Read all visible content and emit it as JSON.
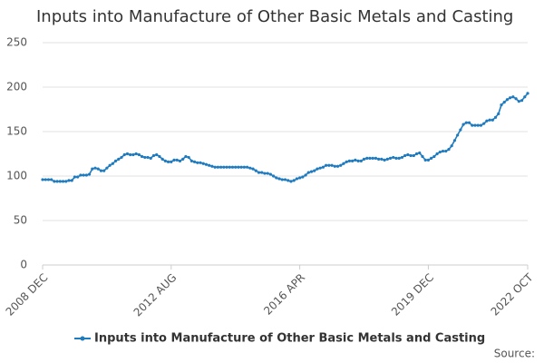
{
  "chart_data": {
    "type": "line",
    "title": "Inputs into Manufacture of Other Basic Metals and Casting",
    "source": "Source:",
    "categories": [
      "2008 DEC",
      null,
      null,
      null,
      null,
      null,
      null,
      null,
      null,
      null,
      null,
      null,
      null,
      null,
      null,
      null,
      null,
      null,
      null,
      null,
      null,
      null,
      null,
      null,
      null,
      null,
      null,
      null,
      null,
      null,
      null,
      null,
      null,
      null,
      null,
      null,
      null,
      null,
      null,
      null,
      null,
      null,
      null,
      null,
      "2012 AUG",
      null,
      null,
      null,
      null,
      null,
      null,
      null,
      null,
      null,
      null,
      null,
      null,
      null,
      null,
      null,
      null,
      null,
      null,
      null,
      null,
      null,
      null,
      null,
      null,
      null,
      null,
      null,
      null,
      null,
      null,
      null,
      null,
      null,
      null,
      null,
      null,
      null,
      null,
      null,
      null,
      null,
      null,
      null,
      "2016 APR",
      null,
      null,
      null,
      null,
      null,
      null,
      null,
      null,
      null,
      null,
      null,
      null,
      null,
      null,
      null,
      null,
      null,
      null,
      null,
      null,
      null,
      null,
      null,
      null,
      null,
      null,
      null,
      null,
      null,
      null,
      null,
      null,
      null,
      null,
      null,
      null,
      null,
      null,
      null,
      null,
      null,
      null,
      null,
      "2019 DEC",
      null,
      null,
      null,
      null,
      null,
      null,
      null,
      null,
      null,
      null,
      null,
      null,
      null,
      null,
      null,
      null,
      null,
      null,
      null,
      null,
      null,
      null,
      null,
      null,
      null,
      null,
      null,
      null,
      null,
      null,
      null,
      null,
      null,
      "2022 OCT"
    ],
    "series": [
      {
        "name": "Inputs into Manufacture of Other Basic Metals and Casting",
        "color": "#1f7bbf",
        "values": [
          96,
          96,
          96,
          96,
          94,
          94,
          94,
          94,
          94,
          95,
          95,
          99,
          99,
          101,
          101,
          101,
          102,
          108,
          109,
          108,
          106,
          106,
          109,
          112,
          114,
          117,
          119,
          121,
          124,
          125,
          124,
          124,
          125,
          124,
          122,
          121,
          121,
          120,
          123,
          124,
          122,
          119,
          117,
          116,
          116,
          118,
          118,
          117,
          119,
          122,
          121,
          117,
          116,
          115,
          115,
          114,
          113,
          112,
          111,
          110,
          110,
          110,
          110,
          110,
          110,
          110,
          110,
          110,
          110,
          110,
          110,
          109,
          108,
          106,
          104,
          104,
          103,
          103,
          102,
          100,
          98,
          97,
          96,
          96,
          95,
          94,
          95,
          97,
          98,
          99,
          101,
          104,
          105,
          106,
          108,
          109,
          110,
          112,
          112,
          112,
          111,
          111,
          112,
          114,
          116,
          117,
          117,
          118,
          117,
          117,
          119,
          120,
          120,
          120,
          120,
          119,
          119,
          118,
          119,
          120,
          121,
          120,
          120,
          121,
          123,
          124,
          123,
          123,
          125,
          126,
          122,
          118,
          118,
          120,
          122,
          125,
          127,
          128,
          128,
          130,
          134,
          140,
          146,
          152,
          158,
          160,
          160,
          157,
          157,
          157,
          157,
          159,
          162,
          163,
          163,
          166,
          170,
          180,
          183,
          186,
          188,
          189,
          187,
          184,
          185,
          189,
          193
        ]
      }
    ],
    "ylim": [
      0,
      250
    ],
    "yticks": [
      0,
      50,
      100,
      150,
      200,
      250
    ],
    "grid": true
  }
}
